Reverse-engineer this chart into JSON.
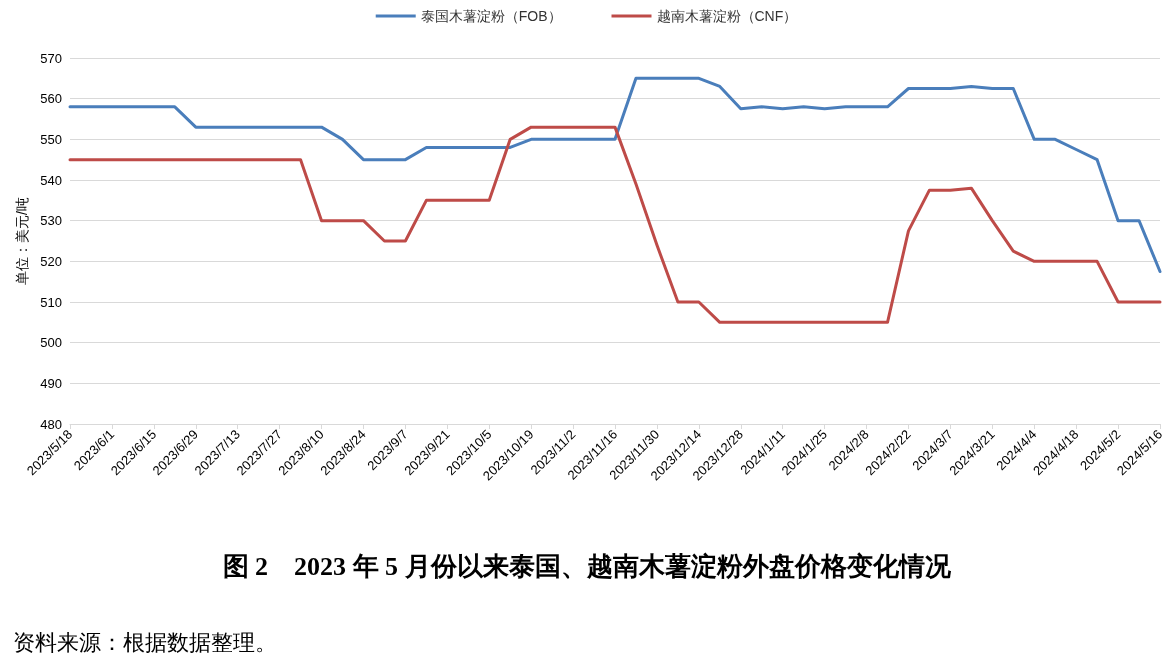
{
  "chart_data": {
    "type": "line",
    "title": "图 2　2023 年 5 月份以来泰国、越南木薯淀粉外盘价格变化情况",
    "ylabel": "单位：美元/吨",
    "annotations": [
      "资料来源：根据数据整理。"
    ],
    "categories": [
      "2023/5/18",
      null,
      "2023/6/1",
      null,
      "2023/6/15",
      null,
      "2023/6/29",
      null,
      "2023/7/13",
      null,
      "2023/7/27",
      null,
      "2023/8/10",
      null,
      "2023/8/24",
      null,
      "2023/9/7",
      null,
      "2023/9/21",
      null,
      "2023/10/5",
      null,
      "2023/10/19",
      null,
      "2023/11/2",
      null,
      "2023/11/16",
      null,
      "2023/11/30",
      null,
      "2023/12/14",
      null,
      "2023/12/28",
      null,
      "2024/1/11",
      null,
      "2024/1/25",
      null,
      "2024/2/8",
      null,
      "2024/2/22",
      null,
      "2024/3/7",
      null,
      "2024/3/21",
      null,
      "2024/4/4",
      null,
      "2024/4/18",
      null,
      "2024/5/2",
      null,
      "2024/5/16"
    ],
    "series": [
      {
        "name": "泰国木薯淀粉（FOB）",
        "color": "#4a7ebb",
        "values": [
          558,
          558,
          558,
          558,
          558,
          558,
          553,
          553,
          553,
          553,
          553,
          553,
          553,
          550,
          545,
          545,
          545,
          548,
          548,
          548,
          548,
          548,
          550,
          550,
          550,
          550,
          550,
          565,
          565,
          565,
          565,
          563,
          557.5,
          558,
          557.5,
          558,
          557.5,
          558,
          558,
          558,
          562.5,
          562.5,
          562.5,
          563,
          562.5,
          562.5,
          550,
          550,
          547.5,
          545,
          530,
          530,
          517.5
        ]
      },
      {
        "name": "越南木薯淀粉（CNF）",
        "color": "#be4b48",
        "values": [
          545,
          545,
          545,
          545,
          545,
          545,
          545,
          545,
          545,
          545,
          545,
          545,
          530,
          530,
          530,
          525,
          525,
          535,
          535,
          535,
          535,
          550,
          553,
          553,
          553,
          553,
          553,
          539,
          524,
          510,
          510,
          505,
          505,
          505,
          505,
          505,
          505,
          505,
          505,
          505,
          527.5,
          537.5,
          537.5,
          538,
          530,
          522.5,
          520,
          520,
          520,
          520,
          510,
          510,
          510
        ]
      }
    ],
    "ylim": [
      480,
      570
    ],
    "yticks": [
      480,
      490,
      500,
      510,
      520,
      530,
      540,
      550,
      560,
      570
    ],
    "grid": "y",
    "legend": "top",
    "marker": "none",
    "line_style": "solid"
  }
}
